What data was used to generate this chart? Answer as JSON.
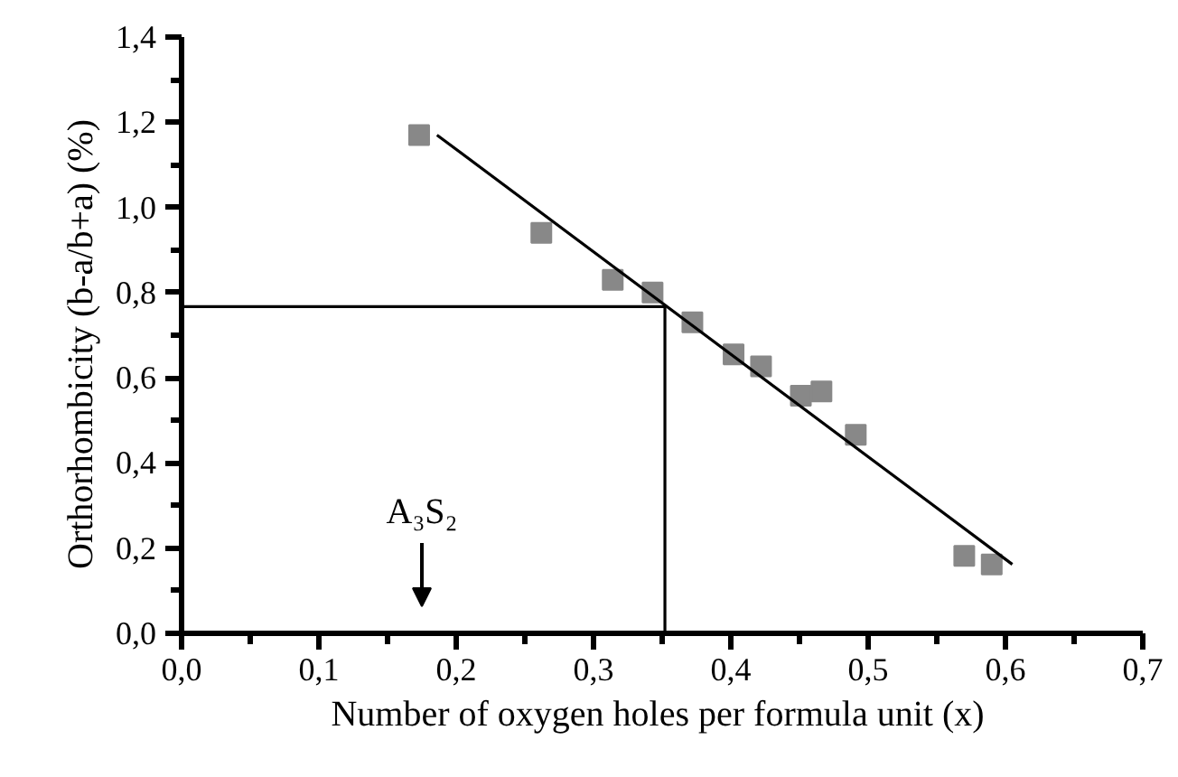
{
  "chart_data": {
    "type": "scatter",
    "xlabel": "Number of oxygen holes per formula unit  (x)",
    "ylabel": "Orthorhombicity  (b-a/b+a)  (%)",
    "series": [
      {
        "color": "#888888",
        "marker": "square",
        "x": [
          0.173,
          0.262,
          0.314,
          0.343,
          0.372,
          0.402,
          0.422,
          0.451,
          0.466,
          0.491,
          0.57,
          0.59
        ],
        "values": [
          1.17,
          0.94,
          0.83,
          0.8,
          0.73,
          0.655,
          0.627,
          0.558,
          0.568,
          0.466,
          0.182,
          0.162
        ]
      },
      {
        "type": "line",
        "color": "#000000",
        "marker": "none",
        "x": [
          0.186,
          0.605
        ],
        "values": [
          1.17,
          0.162
        ]
      },
      {
        "type": "line",
        "color": "#000000",
        "marker": "none",
        "x": [
          0,
          0.352,
          0.352
        ],
        "values": [
          0.767,
          0.767,
          0
        ]
      }
    ],
    "annotations": [
      "A₃S₂"
    ],
    "xlim": [
      0,
      0.7
    ],
    "ylim": [
      0,
      1.4
    ],
    "xticks": [
      {
        "value": 0,
        "label": "0,0"
      },
      {
        "value": 0.05,
        "label": null
      },
      {
        "value": 0.1,
        "label": "0,1"
      },
      {
        "value": 0.15,
        "label": null
      },
      {
        "value": 0.2,
        "label": "0,2"
      },
      {
        "value": 0.25,
        "label": null
      },
      {
        "value": 0.3,
        "label": "0,3"
      },
      {
        "value": 0.35,
        "label": null
      },
      {
        "value": 0.4,
        "label": "0,4"
      },
      {
        "value": 0.45,
        "label": null
      },
      {
        "value": 0.5,
        "label": "0,5"
      },
      {
        "value": 0.55,
        "label": null
      },
      {
        "value": 0.6,
        "label": "0,6"
      },
      {
        "value": 0.65,
        "label": null
      },
      {
        "value": 0.7,
        "label": "0,7"
      }
    ],
    "yticks": [
      {
        "value": 0,
        "label": "0,0"
      },
      {
        "value": 0.1,
        "label": null
      },
      {
        "value": 0.2,
        "label": "0,2"
      },
      {
        "value": 0.3,
        "label": null
      },
      {
        "value": 0.4,
        "label": "0,4"
      },
      {
        "value": 0.5,
        "label": null
      },
      {
        "value": 0.6,
        "label": "0,6"
      },
      {
        "value": 0.7,
        "label": null
      },
      {
        "value": 0.8,
        "label": "0,8"
      },
      {
        "value": 0.9,
        "label": null
      },
      {
        "value": 1.0,
        "label": "1,0"
      },
      {
        "value": 1.1,
        "label": null
      },
      {
        "value": 1.2,
        "label": "1,2"
      },
      {
        "value": 1.3,
        "label": null
      },
      {
        "value": 1.4,
        "label": "1,4"
      }
    ],
    "grid": false
  }
}
